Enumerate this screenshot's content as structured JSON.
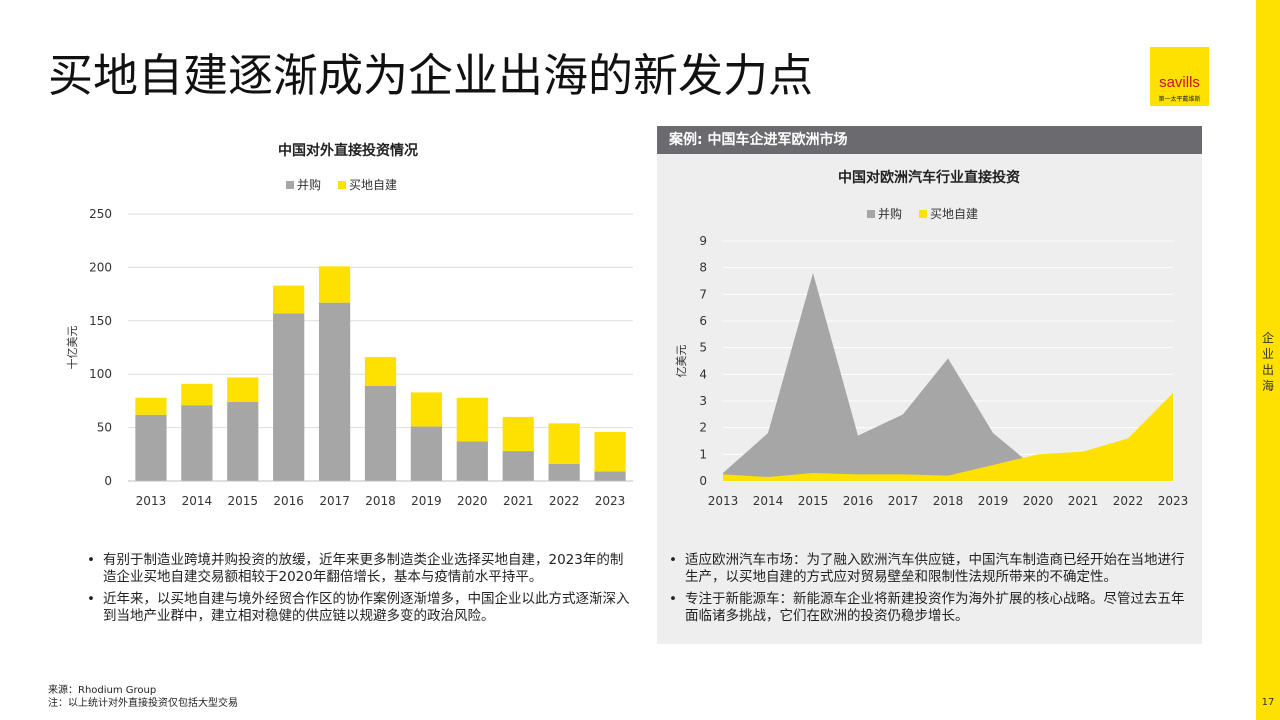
{
  "page": {
    "title": "买地自建逐渐成为企业出海的新发力点",
    "side_label": "企业出海",
    "page_number": "17"
  },
  "logo": {
    "main": "savills",
    "sub": "第一太平戴维斯"
  },
  "case_panel": {
    "header": "案例: 中国车企进军欧洲市场"
  },
  "bullets_left": [
    "有别于制造业跨境并购投资的放缓，近年来更多制造类企业选择买地自建，2023年的制造企业买地自建交易额相较于2020年翻倍增长，基本与疫情前水平持平。",
    "近年来，以买地自建与境外经贸合作区的协作案例逐渐增多，中国企业以此方式逐渐深入到当地产业群中，建立相对稳健的供应链以规避多变的政治风险。"
  ],
  "bullets_right": [
    "适应欧洲汽车市场：为了融入欧洲汽车供应链，中国汽车制造商已经开始在当地进行生产，以买地自建的方式应对贸易壁垒和限制性法规所带来的不确定性。",
    "专注于新能源车：新能源车企业将新建投资作为海外扩展的核心战略。尽管过去五年面临诸多挑战，它们在欧洲的投资仍稳步增长。"
  ],
  "footnotes": {
    "source": "来源：Rhodium Group",
    "note": "注：以上统计对外直接投资仅包括大型交易"
  },
  "colors": {
    "gray": "#a6a6a6",
    "yellow": "#ffe100",
    "accent_bar": "#ffe100",
    "header_bg": "#6b6b6f"
  },
  "chart_data": [
    {
      "type": "bar",
      "stacked": true,
      "title": "中国对外直接投资情况",
      "xlabel": "",
      "ylabel": "十亿美元",
      "categories": [
        "2013",
        "2014",
        "2015",
        "2016",
        "2017",
        "2018",
        "2019",
        "2020",
        "2021",
        "2022",
        "2023"
      ],
      "series": [
        {
          "name": "并购",
          "color": "#a6a6a6",
          "values": [
            62,
            71,
            74,
            157,
            167,
            89,
            51,
            37,
            28,
            16,
            9
          ]
        },
        {
          "name": "买地自建",
          "color": "#ffe100",
          "values": [
            16,
            20,
            23,
            26,
            34,
            27,
            32,
            41,
            32,
            38,
            37
          ]
        }
      ],
      "ylim": [
        0,
        250
      ],
      "yticks": [
        0,
        50,
        100,
        150,
        200,
        250
      ],
      "grid": true,
      "legend": "top-center"
    },
    {
      "type": "area",
      "title": "中国对欧洲汽车行业直接投资",
      "xlabel": "",
      "ylabel": "亿美元",
      "x": [
        "2013",
        "2014",
        "2015",
        "2016",
        "2017",
        "2018",
        "2019",
        "2020",
        "2021",
        "2022",
        "2023"
      ],
      "series": [
        {
          "name": "并购",
          "color": "#a6a6a6",
          "values": [
            0.3,
            1.8,
            7.8,
            1.7,
            2.5,
            4.6,
            1.8,
            0.4,
            0,
            0,
            0
          ]
        },
        {
          "name": "买地自建",
          "color": "#ffe100",
          "values": [
            0.25,
            0.15,
            0.3,
            0.25,
            0.25,
            0.2,
            0.6,
            1.0,
            1.1,
            1.6,
            3.3
          ]
        }
      ],
      "ylim": [
        0,
        9
      ],
      "yticks": [
        0,
        1,
        2,
        3,
        4,
        5,
        6,
        7,
        8,
        9
      ],
      "grid": true,
      "legend": "top-center"
    }
  ]
}
